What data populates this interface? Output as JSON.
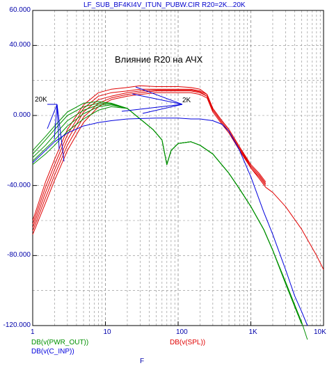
{
  "header_title": "LF_SUB_BF4KI4V_ITUN_PUBW.CIR R20=2K...20K",
  "annotation_main": "Влияние R20 на АЧХ",
  "annotation_20k": "20K",
  "annotation_2k": "2K",
  "legend": {
    "pwr_out": "DB(v(PWR_OUT))",
    "c_inp": "DB(v(C_INP))",
    "spl": "DB(v(SPL))"
  },
  "xlabel": "F",
  "colors": {
    "title": "#0000cc",
    "axis_text": "#0000aa",
    "spl": "#e00000",
    "pwr_out": "#009000",
    "c_inp": "#0000dd",
    "grid": "#888888"
  },
  "chart_data": {
    "type": "line",
    "x_scale": "log",
    "xlim": [
      1,
      10000
    ],
    "ylim": [
      -120,
      60
    ],
    "y_ticks": [
      60,
      40,
      0,
      -40,
      -80,
      -120
    ],
    "y_tick_labels": [
      "60.000",
      "40.000",
      "0.000",
      "-40.000",
      "-80.000",
      "-120.000"
    ],
    "x_ticks": [
      1,
      10,
      100,
      1000,
      10000
    ],
    "x_tick_labels": [
      "1",
      "10",
      "100",
      "1K",
      "10K"
    ],
    "grid": true,
    "series": [
      {
        "name": "DB(v(SPL))",
        "color": "#e00000",
        "points": [
          [
            1,
            -68
          ],
          [
            1.5,
            -50
          ],
          [
            2,
            -37
          ],
          [
            3,
            -20
          ],
          [
            5,
            -4
          ],
          [
            8,
            5
          ],
          [
            12,
            9
          ],
          [
            20,
            11
          ],
          [
            30,
            12
          ],
          [
            50,
            13
          ],
          [
            100,
            13
          ],
          [
            150,
            13
          ],
          [
            200,
            12
          ],
          [
            250,
            10
          ],
          [
            300,
            2
          ],
          [
            400,
            -5
          ],
          [
            500,
            -10
          ],
          [
            700,
            -20
          ],
          [
            1000,
            -30
          ],
          [
            1300,
            -36
          ],
          [
            1600,
            -41
          ],
          [
            2000,
            -44
          ],
          [
            3000,
            -52
          ],
          [
            5000,
            -65
          ],
          [
            8000,
            -80
          ],
          [
            10000,
            -88
          ]
        ]
      },
      {
        "name": "DB(v(SPL))",
        "color": "#e00000",
        "points": [
          [
            1,
            -66
          ],
          [
            1.5,
            -47
          ],
          [
            2,
            -34
          ],
          [
            3,
            -17
          ],
          [
            5,
            -1
          ],
          [
            8,
            7
          ],
          [
            12,
            10
          ],
          [
            20,
            12
          ],
          [
            30,
            13
          ],
          [
            50,
            14
          ],
          [
            100,
            14
          ],
          [
            150,
            14
          ],
          [
            200,
            13
          ],
          [
            250,
            11
          ],
          [
            300,
            3
          ],
          [
            400,
            -4
          ],
          [
            500,
            -9
          ],
          [
            700,
            -19
          ],
          [
            1000,
            -30
          ],
          [
            1300,
            -35
          ],
          [
            1600,
            -40
          ]
        ]
      },
      {
        "name": "DB(v(SPL))",
        "color": "#e00000",
        "points": [
          [
            1,
            -64
          ],
          [
            1.5,
            -44
          ],
          [
            2,
            -31
          ],
          [
            3,
            -14
          ],
          [
            5,
            2
          ],
          [
            8,
            9
          ],
          [
            12,
            11
          ],
          [
            20,
            13
          ],
          [
            30,
            14
          ],
          [
            50,
            14.5
          ],
          [
            100,
            14.5
          ],
          [
            150,
            14.5
          ],
          [
            200,
            13.5
          ],
          [
            250,
            11
          ],
          [
            300,
            3
          ],
          [
            400,
            -4
          ],
          [
            500,
            -9
          ],
          [
            700,
            -19
          ],
          [
            1000,
            -29
          ],
          [
            1300,
            -34
          ],
          [
            1600,
            -39
          ]
        ]
      },
      {
        "name": "DB(v(SPL))",
        "color": "#e00000",
        "points": [
          [
            1,
            -62
          ],
          [
            1.5,
            -41
          ],
          [
            2,
            -28
          ],
          [
            3,
            -11
          ],
          [
            5,
            4
          ],
          [
            8,
            11
          ],
          [
            12,
            13
          ],
          [
            20,
            14
          ],
          [
            30,
            15
          ],
          [
            50,
            15
          ],
          [
            100,
            15
          ],
          [
            150,
            15
          ],
          [
            200,
            14
          ],
          [
            250,
            12
          ],
          [
            300,
            4
          ],
          [
            400,
            -3
          ],
          [
            500,
            -8
          ],
          [
            700,
            -18
          ],
          [
            1000,
            -29
          ],
          [
            1300,
            -34
          ],
          [
            1600,
            -39
          ]
        ]
      },
      {
        "name": "DB(v(SPL))",
        "color": "#e00000",
        "points": [
          [
            1,
            -60
          ],
          [
            1.5,
            -38
          ],
          [
            2,
            -25
          ],
          [
            3,
            -8
          ],
          [
            5,
            6
          ],
          [
            8,
            13
          ],
          [
            12,
            15
          ],
          [
            20,
            16
          ],
          [
            30,
            17
          ],
          [
            50,
            16.5
          ],
          [
            100,
            16.5
          ],
          [
            150,
            16
          ],
          [
            200,
            15
          ],
          [
            250,
            12
          ],
          [
            300,
            4
          ],
          [
            400,
            -3
          ],
          [
            500,
            -8
          ],
          [
            700,
            -18
          ],
          [
            1000,
            -28
          ],
          [
            1300,
            -33
          ],
          [
            1600,
            -38
          ]
        ]
      },
      {
        "name": "DB(v(PWR_OUT))",
        "color": "#009000",
        "points": [
          [
            1,
            -20
          ],
          [
            1.5,
            -12
          ],
          [
            2,
            -6
          ],
          [
            3,
            2
          ],
          [
            5,
            7
          ],
          [
            8,
            8
          ],
          [
            12,
            7
          ],
          [
            20,
            4
          ],
          [
            30,
            -2
          ],
          [
            45,
            -8
          ],
          [
            60,
            -14
          ],
          [
            70,
            -28
          ],
          [
            80,
            -20
          ],
          [
            100,
            -16
          ],
          [
            150,
            -15
          ],
          [
            200,
            -17
          ],
          [
            300,
            -22
          ],
          [
            500,
            -33
          ],
          [
            700,
            -42
          ],
          [
            1000,
            -52
          ],
          [
            1500,
            -65
          ],
          [
            2000,
            -77
          ],
          [
            3000,
            -95
          ],
          [
            4000,
            -108
          ],
          [
            5000,
            -118
          ],
          [
            6000,
            -128
          ]
        ]
      },
      {
        "name": "DB(v(PWR_OUT))",
        "color": "#009000",
        "points": [
          [
            1,
            -22
          ],
          [
            1.5,
            -14
          ],
          [
            2,
            -8
          ],
          [
            3,
            0
          ],
          [
            5,
            5
          ],
          [
            8,
            7
          ],
          [
            12,
            7
          ],
          [
            20,
            4
          ],
          [
            30,
            -2
          ],
          [
            45,
            -8
          ],
          [
            60,
            -14
          ],
          [
            70,
            -28
          ],
          [
            80,
            -20
          ],
          [
            100,
            -16
          ],
          [
            150,
            -15
          ],
          [
            200,
            -17
          ],
          [
            300,
            -22
          ],
          [
            500,
            -33
          ],
          [
            700,
            -42
          ],
          [
            1000,
            -52
          ],
          [
            1500,
            -65
          ],
          [
            2000,
            -77
          ],
          [
            3000,
            -96
          ],
          [
            4000,
            -109
          ],
          [
            5000,
            -119
          ]
        ]
      },
      {
        "name": "DB(v(PWR_OUT))",
        "color": "#009000",
        "points": [
          [
            1,
            -24
          ],
          [
            1.5,
            -17
          ],
          [
            2,
            -11
          ],
          [
            3,
            -3
          ],
          [
            5,
            3
          ],
          [
            8,
            6
          ],
          [
            12,
            6.5
          ],
          [
            20,
            4
          ],
          [
            30,
            -2
          ],
          [
            45,
            -8
          ],
          [
            60,
            -14
          ],
          [
            70,
            -28
          ],
          [
            80,
            -20
          ],
          [
            100,
            -16
          ],
          [
            150,
            -15
          ],
          [
            200,
            -17
          ],
          [
            300,
            -22
          ],
          [
            500,
            -33
          ],
          [
            700,
            -42
          ],
          [
            1000,
            -52
          ],
          [
            1500,
            -65
          ],
          [
            2000,
            -77
          ],
          [
            3000,
            -96
          ],
          [
            4000,
            -109
          ],
          [
            5000,
            -119
          ]
        ]
      },
      {
        "name": "DB(v(PWR_OUT))",
        "color": "#009000",
        "points": [
          [
            1,
            -26
          ],
          [
            1.5,
            -19
          ],
          [
            2,
            -14
          ],
          [
            3,
            -6
          ],
          [
            5,
            1
          ],
          [
            8,
            5
          ],
          [
            12,
            6
          ],
          [
            20,
            4
          ],
          [
            30,
            -2
          ],
          [
            45,
            -8
          ],
          [
            60,
            -14
          ],
          [
            70,
            -28
          ],
          [
            80,
            -20
          ],
          [
            100,
            -16
          ],
          [
            150,
            -15
          ],
          [
            200,
            -17
          ],
          [
            300,
            -22
          ],
          [
            500,
            -33
          ],
          [
            700,
            -42
          ],
          [
            1000,
            -52
          ],
          [
            1500,
            -65
          ],
          [
            2000,
            -77
          ],
          [
            3000,
            -96
          ],
          [
            4000,
            -109
          ],
          [
            5000,
            -119
          ]
        ]
      },
      {
        "name": "DB(v(PWR_OUT))",
        "color": "#009000",
        "points": [
          [
            1,
            -28
          ],
          [
            1.5,
            -22
          ],
          [
            2,
            -17
          ],
          [
            3,
            -9
          ],
          [
            5,
            -2
          ],
          [
            8,
            3
          ],
          [
            12,
            5
          ],
          [
            20,
            4
          ],
          [
            30,
            -2
          ],
          [
            45,
            -8
          ],
          [
            60,
            -14
          ],
          [
            70,
            -28
          ],
          [
            80,
            -20
          ],
          [
            100,
            -16
          ],
          [
            150,
            -15
          ],
          [
            200,
            -17
          ],
          [
            300,
            -22
          ],
          [
            500,
            -33
          ],
          [
            700,
            -42
          ],
          [
            1000,
            -52
          ],
          [
            1500,
            -65
          ],
          [
            2000,
            -77
          ],
          [
            3000,
            -96
          ],
          [
            4000,
            -109
          ],
          [
            5000,
            -119
          ]
        ]
      },
      {
        "name": "DB(v(C_INP))",
        "color": "#0000dd",
        "points": [
          [
            1,
            -27
          ],
          [
            1.5,
            -20
          ],
          [
            2,
            -15
          ],
          [
            3,
            -10
          ],
          [
            5,
            -6
          ],
          [
            8,
            -4
          ],
          [
            12,
            -3
          ],
          [
            20,
            -2
          ],
          [
            50,
            -1.5
          ],
          [
            100,
            -1.5
          ],
          [
            150,
            -2
          ],
          [
            200,
            -2
          ],
          [
            300,
            -3
          ],
          [
            400,
            -5
          ],
          [
            500,
            -9
          ],
          [
            700,
            -20
          ],
          [
            1000,
            -35
          ],
          [
            1500,
            -55
          ],
          [
            2000,
            -68
          ],
          [
            3000,
            -88
          ],
          [
            4000,
            -103
          ],
          [
            5000,
            -112
          ],
          [
            6000,
            -120
          ]
        ]
      },
      {
        "name": "DB(v(SPL))",
        "color": "#e00000",
        "points": [
          [
            10000,
            -88
          ]
        ]
      }
    ]
  }
}
